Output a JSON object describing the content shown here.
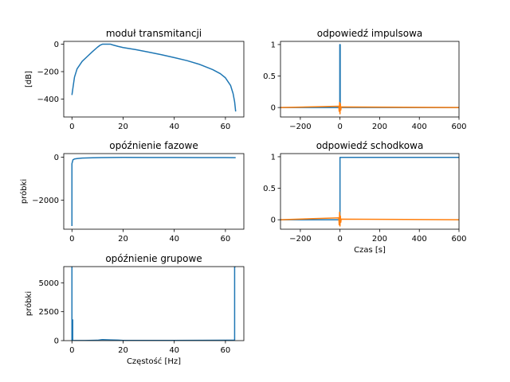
{
  "chart_data": [
    {
      "type": "line",
      "title": "moduł transmitancji",
      "xlabel": "",
      "ylabel": "[dB]",
      "xlim": [
        -3.2,
        67.2
      ],
      "ylim": [
        -530,
        20
      ],
      "xticks": [
        0,
        20,
        40,
        60
      ],
      "yticks": [
        0,
        -200,
        -400
      ],
      "series": [
        {
          "color": "#1f77b4",
          "x": [
            0,
            0.3,
            1,
            2,
            4,
            6,
            8,
            10,
            11,
            12,
            13,
            14,
            15,
            16,
            18,
            20,
            25,
            30,
            35,
            40,
            45,
            50,
            55,
            58,
            60,
            62,
            63,
            63.6,
            64
          ],
          "y": [
            -370,
            -330,
            -240,
            -180,
            -125,
            -90,
            -55,
            -22,
            -8,
            0,
            0,
            0,
            0,
            -6,
            -16,
            -25,
            -40,
            -58,
            -77,
            -98,
            -120,
            -148,
            -185,
            -215,
            -245,
            -300,
            -360,
            -420,
            -490
          ]
        }
      ]
    },
    {
      "type": "line",
      "title": "odpowiedź impulsowa",
      "xlabel": "",
      "ylabel": "",
      "xlim": [
        -300,
        600
      ],
      "ylim": [
        -0.15,
        1.05
      ],
      "xticks": [
        -200,
        0,
        200,
        400,
        600
      ],
      "yticks": [
        0.0,
        0.5,
        1.0
      ],
      "series": [
        {
          "color": "#1f77b4",
          "x": [
            -300,
            -1,
            -1,
            1,
            1,
            600
          ],
          "y": [
            0,
            0,
            1.0,
            1.0,
            0,
            0
          ]
        },
        {
          "color": "#ff7f0e",
          "x": [
            -300,
            -6,
            -4,
            -2,
            0,
            2,
            4,
            6,
            600
          ],
          "y": [
            0,
            0.02,
            -0.06,
            0.08,
            -0.1,
            0.06,
            -0.04,
            0.01,
            0
          ]
        }
      ]
    },
    {
      "type": "line",
      "title": "opóźnienie fazowe",
      "xlabel": "",
      "ylabel": "próbki",
      "xlim": [
        -3.2,
        67.2
      ],
      "ylim": [
        -3350,
        170
      ],
      "xticks": [
        0,
        20,
        40,
        60
      ],
      "yticks": [
        0,
        -2000
      ],
      "series": [
        {
          "color": "#1f77b4",
          "x": [
            0,
            0,
            0.4,
            1,
            2,
            4,
            8,
            12,
            16,
            20,
            30,
            40,
            50,
            60,
            64
          ],
          "y": [
            -3200,
            -300,
            -120,
            -80,
            -60,
            -40,
            -25,
            -15,
            -10,
            -8,
            -10,
            -12,
            -14,
            -16,
            -18
          ]
        }
      ]
    },
    {
      "type": "line",
      "title": "odpowiedź schodkowa",
      "xlabel": "Czas [s]",
      "ylabel": "",
      "xlim": [
        -300,
        600
      ],
      "ylim": [
        -0.15,
        1.05
      ],
      "xticks": [
        -200,
        0,
        200,
        400,
        600
      ],
      "yticks": [
        0.0,
        0.5,
        1.0
      ],
      "series": [
        {
          "color": "#1f77b4",
          "x": [
            -300,
            0,
            0,
            600
          ],
          "y": [
            0,
            0,
            0.99,
            0.99
          ]
        },
        {
          "color": "#ff7f0e",
          "x": [
            -300,
            -6,
            -4,
            -2,
            0,
            2,
            4,
            6,
            600
          ],
          "y": [
            0,
            0.03,
            -0.08,
            0.12,
            -0.1,
            0.06,
            -0.04,
            0.01,
            0
          ]
        }
      ]
    },
    {
      "type": "line",
      "title": "opóźnienie grupowe",
      "xlabel": "Częstość [Hz]",
      "ylabel": "próbki",
      "xlim": [
        -3.2,
        67.2
      ],
      "ylim": [
        0,
        6400
      ],
      "xticks": [
        0,
        20,
        40,
        60
      ],
      "yticks": [
        0,
        2500,
        5000
      ],
      "series": [
        {
          "color": "#1f77b4",
          "x": [
            0,
            0,
            0.1,
            0.1,
            0.3,
            0.3,
            0.5,
            1,
            5,
            10,
            12,
            15,
            18,
            20,
            30,
            40,
            50,
            60,
            63.6,
            63.6,
            64
          ],
          "y": [
            6400,
            0,
            0,
            1800,
            1800,
            0,
            0,
            5,
            10,
            30,
            90,
            60,
            40,
            20,
            15,
            20,
            25,
            30,
            30,
            6400,
            6400
          ]
        }
      ]
    }
  ]
}
